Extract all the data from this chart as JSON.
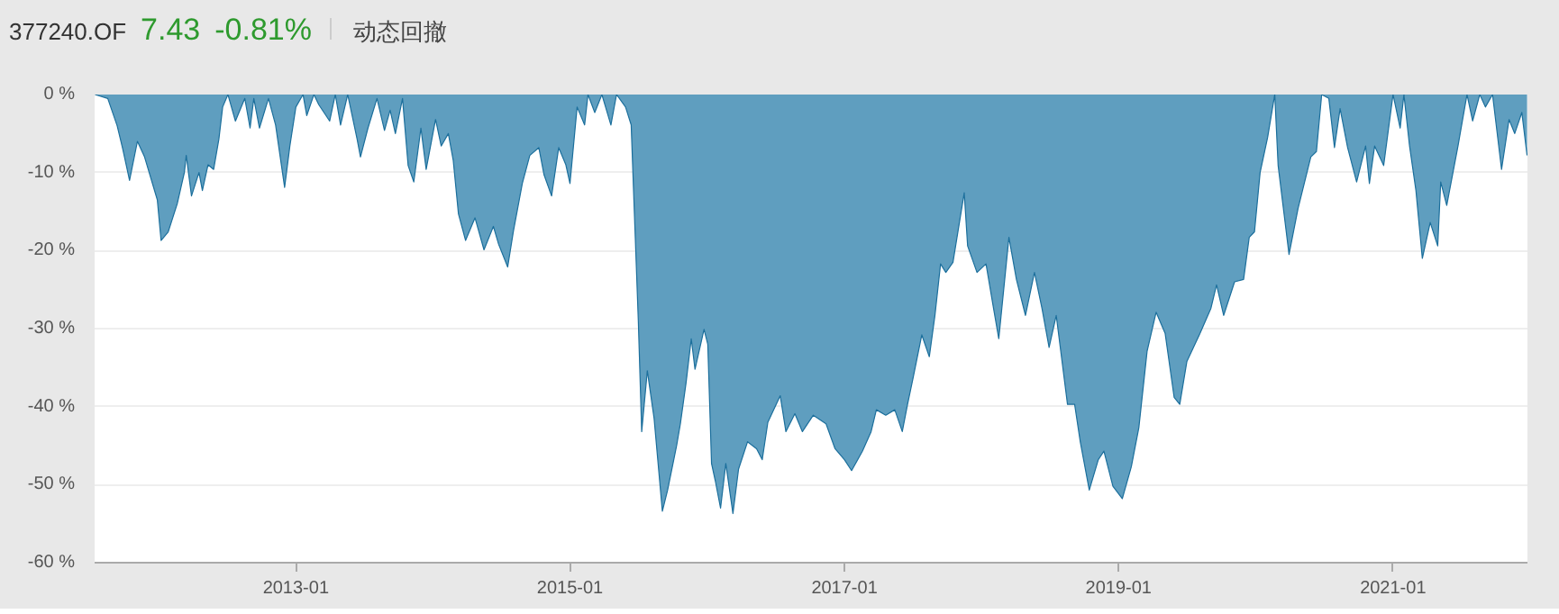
{
  "chart_data": {
    "type": "area",
    "title": "377240.OF",
    "annotations": [
      "7.43",
      "-0.81%",
      "动态回撤"
    ],
    "x": [
      "2011-07-16",
      "2011-08-19",
      "2011-09-13",
      "2011-09-28",
      "2011-10-16",
      "2011-11-06",
      "2011-11-25",
      "2011-12-29",
      "2012-01-08",
      "2012-01-27",
      "2012-02-20",
      "2012-03-10",
      "2012-03-15",
      "2012-03-29",
      "2012-04-18",
      "2012-04-27",
      "2012-05-12",
      "2012-05-27",
      "2012-06-10",
      "2012-06-20",
      "2012-07-04",
      "2012-07-24",
      "2012-08-18",
      "2012-09-01",
      "2012-09-11",
      "2012-09-26",
      "2012-10-20",
      "2012-11-08",
      "2012-12-02",
      "2012-12-16",
      "2013-01-01",
      "2013-01-20",
      "2013-01-30",
      "2013-02-18",
      "2013-03-03",
      "2013-04-01",
      "2013-04-16",
      "2013-04-30",
      "2013-05-19",
      "2013-06-13",
      "2013-06-22",
      "2013-07-12",
      "2013-08-05",
      "2013-08-25",
      "2013-09-09",
      "2013-09-23",
      "2013-10-12",
      "2013-10-27",
      "2013-11-11",
      "2013-11-30",
      "2013-12-14",
      "2014-01-08",
      "2014-01-23",
      "2014-02-11",
      "2014-02-24",
      "2014-03-10",
      "2014-03-29",
      "2014-04-23",
      "2014-05-17",
      "2014-06-11",
      "2014-06-25",
      "2014-07-19",
      "2014-08-03",
      "2014-08-27",
      "2014-09-16",
      "2014-10-10",
      "2014-10-24",
      "2014-11-13",
      "2014-12-02",
      "2014-12-21",
      "2015-01-01",
      "2015-01-20",
      "2015-02-09",
      "2015-02-18",
      "2015-03-08",
      "2015-03-27",
      "2015-04-20",
      "2015-05-05",
      "2015-05-29",
      "2015-06-13",
      "2015-07-02",
      "2015-07-11",
      "2015-07-26",
      "2015-08-13",
      "2015-09-04",
      "2015-09-18",
      "2015-10-12",
      "2015-10-22",
      "2015-11-06",
      "2015-11-20",
      "2015-11-30",
      "2015-12-24",
      "2016-01-03",
      "2016-01-13",
      "2016-01-23",
      "2016-02-06",
      "2016-02-20",
      "2016-03-10",
      "2016-03-25",
      "2016-04-18",
      "2016-05-12",
      "2016-05-27",
      "2016-06-11",
      "2016-07-14",
      "2016-07-29",
      "2016-08-22",
      "2016-09-11",
      "2016-10-10",
      "2016-11-13",
      "2016-12-07",
      "2017-01-01",
      "2017-01-20",
      "2017-02-18",
      "2017-03-13",
      "2017-03-27",
      "2017-04-21",
      "2017-05-15",
      "2017-06-04",
      "2017-06-18",
      "2017-07-02",
      "2017-07-26",
      "2017-08-15",
      "2017-08-30",
      "2017-09-14",
      "2017-09-28",
      "2017-10-17",
      "2017-11-16",
      "2017-11-25",
      "2017-12-20",
      "2018-01-13",
      "2018-02-02",
      "2018-02-16",
      "2018-03-15",
      "2018-04-04",
      "2018-04-28",
      "2018-05-22",
      "2018-06-11",
      "2018-06-30",
      "2018-07-19",
      "2018-08-18",
      "2018-09-06",
      "2018-09-21",
      "2018-10-15",
      "2018-11-08",
      "2018-11-23",
      "2018-12-17",
      "2019-01-11",
      "2019-02-04",
      "2019-02-24",
      "2019-03-18",
      "2019-04-11",
      "2019-05-05",
      "2019-05-29",
      "2019-06-13",
      "2019-07-02",
      "2019-08-06",
      "2019-09-04",
      "2019-09-19",
      "2019-10-08",
      "2019-11-06",
      "2019-11-30",
      "2019-12-15",
      "2019-12-29",
      "2020-01-13",
      "2020-02-02",
      "2020-02-21",
      "2020-03-01",
      "2020-03-30",
      "2020-04-23",
      "2020-05-27",
      "2020-06-11",
      "2020-06-25",
      "2020-07-14",
      "2020-07-29",
      "2020-08-13",
      "2020-09-02",
      "2020-09-26",
      "2020-10-20",
      "2020-10-30",
      "2020-11-13",
      "2020-12-07",
      "2021-01-01",
      "2021-01-20",
      "2021-01-30",
      "2021-02-14",
      "2021-03-03",
      "2021-03-20",
      "2021-04-10",
      "2021-04-30",
      "2021-05-08",
      "2021-05-24",
      "2021-06-23",
      "2021-07-17",
      "2021-08-01",
      "2021-08-20",
      "2021-09-04",
      "2021-09-23",
      "2021-10-17",
      "2021-11-06",
      "2021-11-21",
      "2021-12-10",
      "2021-12-24"
    ],
    "series": [
      {
        "color": "#1c6f9c",
        "values": [
          0,
          -0.5,
          -4,
          -7,
          -11,
          -6,
          -8,
          -13.5,
          -18.7,
          -17.6,
          -14,
          -10,
          -7.8,
          -13,
          -10,
          -12.3,
          -9,
          -9.6,
          -5.7,
          -1.6,
          0,
          -3.4,
          -0.5,
          -4.3,
          -0.5,
          -4.3,
          -0.5,
          -3.9,
          -11.9,
          -6.6,
          -1.6,
          0,
          -2.7,
          0,
          -1.3,
          -3.4,
          0,
          -3.9,
          0,
          -5.7,
          -8,
          -4.3,
          -0.5,
          -4.6,
          -2,
          -5,
          -0.5,
          -9.1,
          -11.2,
          -4.3,
          -9.6,
          -3.2,
          -6.6,
          -5,
          -8.4,
          -15.3,
          -18.7,
          -15.8,
          -19.9,
          -16.9,
          -19.2,
          -22.1,
          -17.6,
          -11.4,
          -7.8,
          -6.8,
          -10.3,
          -13,
          -6.8,
          -9,
          -11.4,
          -1.6,
          -3.9,
          0,
          -2.3,
          0,
          -3.9,
          0,
          -1.6,
          -3.9,
          -29,
          -43.2,
          -35.4,
          -41.5,
          -53.4,
          -50.7,
          -45,
          -42.2,
          -37,
          -31.3,
          -35.2,
          -30.1,
          -32,
          -47.3,
          -49.5,
          -53,
          -47.3,
          -53.7,
          -48,
          -44.5,
          -45.4,
          -46.8,
          -42,
          -38.6,
          -43.2,
          -40.9,
          -43.2,
          -41.1,
          -42.2,
          -45.4,
          -46.8,
          -48.2,
          -45.7,
          -43.2,
          -40.4,
          -41.1,
          -40.4,
          -43.2,
          -39.7,
          -36.5,
          -30.8,
          -33.6,
          -28.3,
          -21.7,
          -22.8,
          -21.5,
          -12.6,
          -19.4,
          -22.8,
          -21.7,
          -27.4,
          -31.3,
          -18.3,
          -23.7,
          -28.3,
          -22.8,
          -27.4,
          -32.4,
          -28.3,
          -39.7,
          -39.7,
          -44.5,
          -50.7,
          -46.8,
          -45.7,
          -50.2,
          -51.8,
          -47.7,
          -42.7,
          -32.9,
          -27.9,
          -30.6,
          -38.8,
          -39.7,
          -34.2,
          -30.6,
          -27.4,
          -24.4,
          -28.3,
          -24,
          -23.7,
          -18.3,
          -17.6,
          -10,
          -5.5,
          0,
          -9.1,
          -20.5,
          -14.6,
          -8,
          -7.3,
          0,
          -0.5,
          -6.8,
          -1.8,
          -6.8,
          -11.2,
          -6.6,
          -11.4,
          -6.6,
          -9.1,
          0,
          -4.3,
          0,
          -6.6,
          -12.3,
          -21,
          -16.4,
          -19.4,
          -11.2,
          -14.2,
          -6.6,
          0,
          -3.4,
          0,
          -1.6,
          0,
          -9.6,
          -3.2,
          -5,
          -2.3,
          -7.8
        ]
      }
    ],
    "xlim": [
      "2011-07-15",
      "2021-12-25"
    ],
    "xticks": [
      {
        "value": "2013-01",
        "label": "2013-01"
      },
      {
        "value": "2015-01",
        "label": "2015-01"
      },
      {
        "value": "2017-01",
        "label": "2017-01"
      },
      {
        "value": "2019-01",
        "label": "2019-01"
      },
      {
        "value": "2021-01",
        "label": "2021-01"
      }
    ],
    "ylim": [
      -60,
      0
    ],
    "yticks": [
      {
        "value": 0,
        "label": "0 %"
      },
      {
        "value": -10,
        "label": "-10 %"
      },
      {
        "value": -20,
        "label": "-20 %"
      },
      {
        "value": -30,
        "label": "-30 %"
      },
      {
        "value": -40,
        "label": "-40 %"
      },
      {
        "value": -50,
        "label": "-50 %"
      },
      {
        "value": -60,
        "label": "-60 %"
      }
    ],
    "grid": "y"
  }
}
